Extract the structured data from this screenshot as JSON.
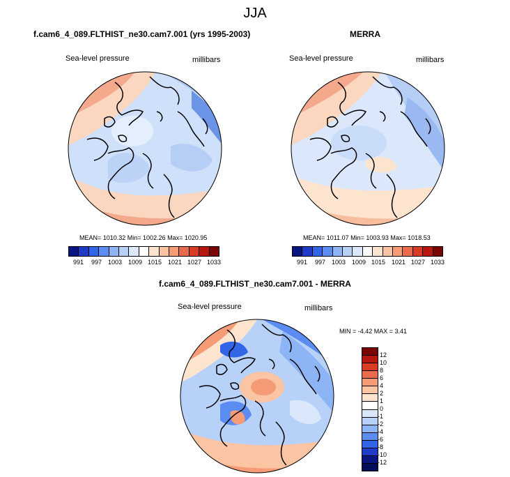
{
  "figure": {
    "title": "JJA",
    "field": "Sea-level pressure",
    "units": "millibars"
  },
  "panels": {
    "model": {
      "title": "f.cam6_4_089.FLTHIST_ne30.cam7.001 (yrs 1995-2003)",
      "stats": "MEAN= 1010.32   Min= 1002.26   Max= 1020.95"
    },
    "obs": {
      "title": "MERRA",
      "stats": "MEAN= 1011.07   Min= 1003.93   Max= 1018.53"
    },
    "diff": {
      "title": "f.cam6_4_089.FLTHIST_ne30.cam7.001 - MERRA",
      "stats": "MIN =   -4.42 MAX =   3.41"
    }
  },
  "abs_colorbar": {
    "labels": [
      "991",
      "997",
      "1003",
      "1009",
      "1015",
      "1021",
      "1027",
      "1033"
    ],
    "colors": [
      "#0a1582",
      "#1f3bc8",
      "#3366e6",
      "#5a8cf2",
      "#8db4f5",
      "#b7d1f8",
      "#dbe8fb",
      "#ffffff",
      "#fde4cf",
      "#fbc4a2",
      "#f59b75",
      "#ea6b4c",
      "#d93c25",
      "#b8170f",
      "#7a0603"
    ]
  },
  "diff_colorbar": {
    "labels": [
      "12",
      "10",
      "8",
      "6",
      "4",
      "2",
      "1",
      "0",
      "-1",
      "-2",
      "-4",
      "-6",
      "-8",
      "-10",
      "-12"
    ],
    "colors": [
      "#7a0603",
      "#b8170f",
      "#d93c25",
      "#ea6b4c",
      "#f59b75",
      "#fbc4a2",
      "#fde4cf",
      "#ffffff",
      "#dbe8fb",
      "#b7d1f8",
      "#8db4f5",
      "#5a8cf2",
      "#3366e6",
      "#1f3bc8",
      "#0a1582",
      "#050c5a"
    ]
  }
}
